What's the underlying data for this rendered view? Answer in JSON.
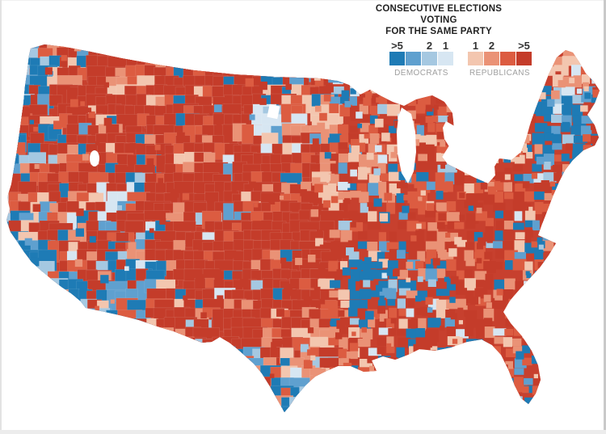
{
  "legend": {
    "title_line1": "CONSECUTIVE ELECTIONS VOTING",
    "title_line2": "FOR THE SAME PARTY",
    "groups": [
      {
        "label": "DEMOCRATS",
        "swatches": [
          {
            "label": ">5",
            "color": "#1e7bb5"
          },
          {
            "label": "",
            "color": "#5fa0cf"
          },
          {
            "label": "2",
            "color": "#a5c8e1"
          },
          {
            "label": "1",
            "color": "#d7e6f2"
          }
        ]
      },
      {
        "label": "REPUBLICANS",
        "swatches": [
          {
            "label": "1",
            "color": "#f3c6af"
          },
          {
            "label": "2",
            "color": "#ea9276"
          },
          {
            "label": "",
            "color": "#dc5c41"
          },
          {
            "label": ">5",
            "color": "#c43c2a"
          }
        ]
      }
    ]
  },
  "chart_data": {
    "type": "choropleth",
    "title": "Consecutive elections voting for the same party",
    "geography": "United States counties (contiguous 48 states)",
    "legend_position": "top-right",
    "bins": {
      "democrats": {
        "labels": [
          ">5",
          "",
          "2",
          "1"
        ],
        "colors": [
          "#1e7bb5",
          "#5fa0cf",
          "#a5c8e1",
          "#d7e6f2"
        ]
      },
      "republicans": {
        "labels": [
          "1",
          "2",
          "",
          ">5"
        ],
        "colors": [
          "#f3c6af",
          "#ea9276",
          "#dc5c41",
          "#c43c2a"
        ]
      }
    }
  },
  "map": {
    "background": "#ffffff",
    "base_color": "#c7402e",
    "palette": {
      "d4": "#1e7bb5",
      "d3": "#5fa0cf",
      "d2": "#a5c8e1",
      "d1": "#d7e6f2",
      "r1": "#f3c6af",
      "r2": "#ea9276",
      "r3": "#dc5c41",
      "r4": "#c43c2a"
    },
    "presets": {
      "default": {
        "d4": 9,
        "d3": 4,
        "d2": 3,
        "d1": 3,
        "r1": 8,
        "r2": 12,
        "r3": 18,
        "r4": 43
      },
      "solid_red": {
        "d4": 3,
        "d3": 1,
        "d2": 1,
        "d1": 1,
        "r1": 3,
        "r2": 5,
        "r3": 10,
        "r4": 76
      },
      "red_salmon": {
        "d4": 4,
        "d3": 2,
        "d2": 1,
        "d1": 2,
        "r1": 10,
        "r2": 24,
        "r3": 30,
        "r4": 27
      },
      "pink_mix": {
        "d4": 5,
        "d3": 3,
        "d2": 2,
        "d1": 4,
        "r1": 24,
        "r2": 30,
        "r3": 18,
        "r4": 14
      },
      "peach": {
        "d4": 3,
        "d3": 2,
        "d2": 2,
        "d1": 3,
        "r1": 52,
        "r2": 20,
        "r3": 10,
        "r4": 8
      },
      "strong_blue": {
        "d4": 52,
        "d3": 18,
        "d2": 8,
        "d1": 4,
        "r1": 5,
        "r2": 4,
        "r3": 4,
        "r4": 5
      },
      "lean_blue": {
        "d4": 28,
        "d3": 16,
        "d2": 9,
        "d1": 7,
        "r1": 8,
        "r2": 9,
        "r3": 10,
        "r4": 13
      },
      "pale_blue": {
        "d4": 7,
        "d3": 10,
        "d2": 24,
        "d1": 34,
        "r1": 8,
        "r2": 5,
        "r3": 5,
        "r4": 7
      }
    },
    "zones": [
      [
        250,
        190,
        110,
        "solid_red"
      ],
      [
        300,
        260,
        95,
        "solid_red"
      ],
      [
        215,
        285,
        85,
        "solid_red"
      ],
      [
        180,
        150,
        78,
        "solid_red"
      ],
      [
        330,
        320,
        85,
        "solid_red"
      ],
      [
        365,
        240,
        78,
        "solid_red"
      ],
      [
        280,
        120,
        70,
        "solid_red"
      ],
      [
        118,
        118,
        58,
        "solid_red"
      ],
      [
        95,
        130,
        45,
        "solid_red"
      ],
      [
        255,
        360,
        70,
        "solid_red"
      ],
      [
        308,
        408,
        62,
        "solid_red"
      ],
      [
        345,
        372,
        58,
        "solid_red"
      ],
      [
        588,
        272,
        34,
        "solid_red"
      ],
      [
        520,
        185,
        42,
        "red_salmon"
      ],
      [
        555,
        250,
        52,
        "red_salmon"
      ],
      [
        520,
        305,
        45,
        "red_salmon"
      ],
      [
        590,
        352,
        40,
        "red_salmon"
      ],
      [
        636,
        420,
        28,
        "red_salmon"
      ],
      [
        440,
        420,
        30,
        "red_salmon"
      ],
      [
        402,
        148,
        38,
        "pink_mix"
      ],
      [
        458,
        188,
        40,
        "pink_mix"
      ],
      [
        398,
        232,
        45,
        "pink_mix"
      ],
      [
        638,
        178,
        36,
        "pink_mix"
      ],
      [
        392,
        450,
        33,
        "pink_mix"
      ],
      [
        150,
        108,
        38,
        "pink_mix"
      ],
      [
        706,
        92,
        36,
        "peach"
      ],
      [
        42,
        88,
        40,
        "strong_blue"
      ],
      [
        16,
        300,
        42,
        "strong_blue"
      ],
      [
        35,
        340,
        38,
        "strong_blue"
      ],
      [
        88,
        366,
        30,
        "strong_blue"
      ],
      [
        428,
        112,
        26,
        "strong_blue"
      ],
      [
        700,
        150,
        48,
        "strong_blue"
      ],
      [
        668,
        208,
        30,
        "strong_blue"
      ],
      [
        712,
        182,
        25,
        "strong_blue"
      ],
      [
        468,
        352,
        40,
        "strong_blue"
      ],
      [
        448,
        322,
        28,
        "strong_blue"
      ],
      [
        344,
        482,
        48,
        "strong_blue"
      ],
      [
        300,
        440,
        26,
        "strong_blue"
      ],
      [
        22,
        195,
        35,
        "lean_blue"
      ],
      [
        452,
        390,
        24,
        "lean_blue"
      ],
      [
        535,
        352,
        48,
        "lean_blue"
      ],
      [
        316,
        454,
        36,
        "lean_blue"
      ],
      [
        205,
        345,
        42,
        "lean_blue"
      ],
      [
        178,
        318,
        30,
        "lean_blue"
      ],
      [
        140,
        352,
        40,
        "lean_blue"
      ],
      [
        165,
        390,
        28,
        "lean_blue"
      ],
      [
        658,
        278,
        26,
        "lean_blue"
      ],
      [
        660,
        318,
        28,
        "lean_blue"
      ],
      [
        678,
        235,
        22,
        "lean_blue"
      ],
      [
        230,
        262,
        26,
        "lean_blue"
      ],
      [
        648,
        455,
        30,
        "lean_blue"
      ],
      [
        170,
        240,
        36,
        "pale_blue"
      ],
      [
        198,
        292,
        26,
        "pale_blue"
      ],
      [
        338,
        152,
        26,
        "pale_blue"
      ]
    ]
  }
}
